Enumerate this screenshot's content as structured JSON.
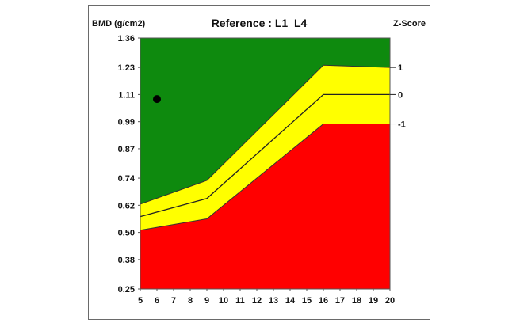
{
  "chart_data": {
    "type": "area",
    "title": "Reference : L1_L4",
    "ylabel": "BMD (g/cm2)",
    "y2label": "Z-Score",
    "ylim": [
      0.25,
      1.36
    ],
    "xlim": [
      5,
      20
    ],
    "yticks": [
      "1.36",
      "1.23",
      "1.11",
      "0.99",
      "0.87",
      "0.74",
      "0.62",
      "0.50",
      "0.38",
      "0.25"
    ],
    "xticks": [
      "5",
      "6",
      "7",
      "8",
      "9",
      "10",
      "11",
      "12",
      "13",
      "14",
      "15",
      "16",
      "17",
      "18",
      "19",
      "20"
    ],
    "zscore_labels": [
      "1",
      "0",
      "-1"
    ],
    "grid": false,
    "x_breakpoints": [
      5,
      9,
      16,
      20
    ],
    "bands": {
      "plus1": [
        0.625,
        0.73,
        1.24,
        1.23
      ],
      "zero": [
        0.57,
        0.65,
        1.11,
        1.11
      ],
      "minus1": [
        0.51,
        0.56,
        0.98,
        0.98
      ]
    },
    "zones": [
      {
        "name": "green",
        "color": "#0e8a0e"
      },
      {
        "name": "yellow",
        "color": "#ffff00"
      },
      {
        "name": "red",
        "color": "#ff0000"
      }
    ],
    "patient_point": {
      "x": 6,
      "y": 1.09
    }
  }
}
